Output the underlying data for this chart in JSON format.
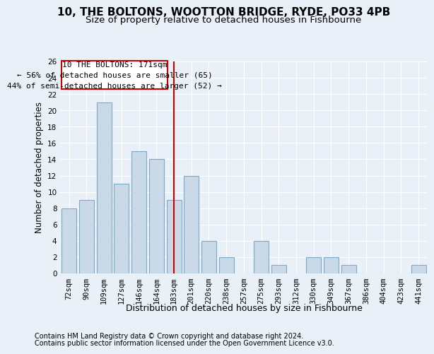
{
  "title1": "10, THE BOLTONS, WOOTTON BRIDGE, RYDE, PO33 4PB",
  "title2": "Size of property relative to detached houses in Fishbourne",
  "xlabel": "Distribution of detached houses by size in Fishbourne",
  "ylabel": "Number of detached properties",
  "categories": [
    "72sqm",
    "90sqm",
    "109sqm",
    "127sqm",
    "146sqm",
    "164sqm",
    "183sqm",
    "201sqm",
    "220sqm",
    "238sqm",
    "257sqm",
    "275sqm",
    "293sqm",
    "312sqm",
    "330sqm",
    "349sqm",
    "367sqm",
    "386sqm",
    "404sqm",
    "423sqm",
    "441sqm"
  ],
  "values": [
    8,
    9,
    21,
    11,
    15,
    14,
    9,
    12,
    4,
    2,
    0,
    4,
    1,
    0,
    2,
    2,
    1,
    0,
    0,
    0,
    1
  ],
  "bar_color": "#c9d9e8",
  "bar_edge_color": "#7aaac8",
  "ref_line_index": 6,
  "ref_line_color": "#cc0000",
  "annotation_line1": "10 THE BOLTONS: 171sqm",
  "annotation_line2": "← 56% of detached houses are smaller (65)",
  "annotation_line3": "44% of semi-detached houses are larger (52) →",
  "annotation_box_color": "#ffffff",
  "annotation_box_edge_color": "#cc0000",
  "ylim": [
    0,
    26
  ],
  "yticks": [
    0,
    2,
    4,
    6,
    8,
    10,
    12,
    14,
    16,
    18,
    20,
    22,
    24,
    26
  ],
  "footer1": "Contains HM Land Registry data © Crown copyright and database right 2024.",
  "footer2": "Contains public sector information licensed under the Open Government Licence v3.0.",
  "bg_color": "#eaf0f8",
  "plot_bg_color": "#eaf0f8",
  "grid_color": "#ffffff",
  "title1_fontsize": 11,
  "title2_fontsize": 9.5,
  "xlabel_fontsize": 9,
  "ylabel_fontsize": 8.5,
  "tick_fontsize": 7.5,
  "annotation_fontsize": 8,
  "footer_fontsize": 7
}
